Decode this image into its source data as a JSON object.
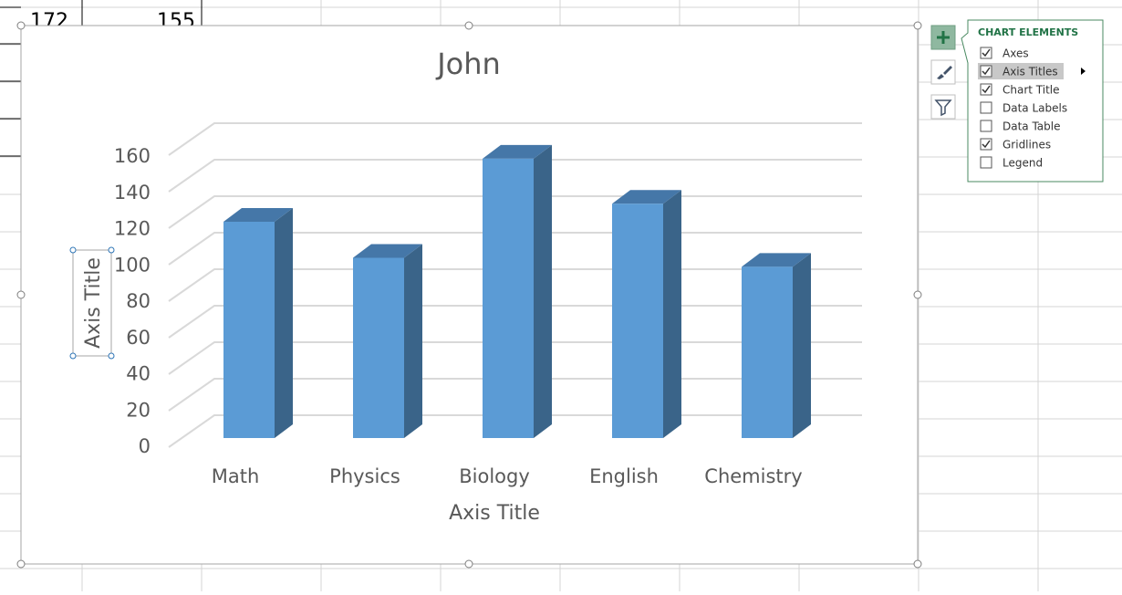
{
  "sheet_cells": [
    "172",
    "155"
  ],
  "chart_data": {
    "type": "bar3d",
    "title": "John",
    "categories": [
      "Math",
      "Physics",
      "Biology",
      "English",
      "Chemistry"
    ],
    "values": [
      120,
      100,
      155,
      130,
      95
    ],
    "color": "#5b9bd5",
    "side_color": "#3a6489",
    "top_color": "#4577a8",
    "ylim": [
      0,
      160
    ],
    "yticks": [
      0,
      20,
      40,
      60,
      80,
      100,
      120,
      140,
      160
    ],
    "grid": true,
    "x_axis_title": "Axis Title",
    "y_axis_title": "Axis Title"
  },
  "chart_elements": {
    "title": "CHART ELEMENTS",
    "items": [
      {
        "label": "Axes",
        "checked": true
      },
      {
        "label": "Axis Titles",
        "checked": true
      },
      {
        "label": "Chart Title",
        "checked": true
      },
      {
        "label": "Data Labels",
        "checked": false
      },
      {
        "label": "Data Table",
        "checked": false
      },
      {
        "label": "Gridlines",
        "checked": true
      },
      {
        "label": "Legend",
        "checked": false
      }
    ]
  }
}
